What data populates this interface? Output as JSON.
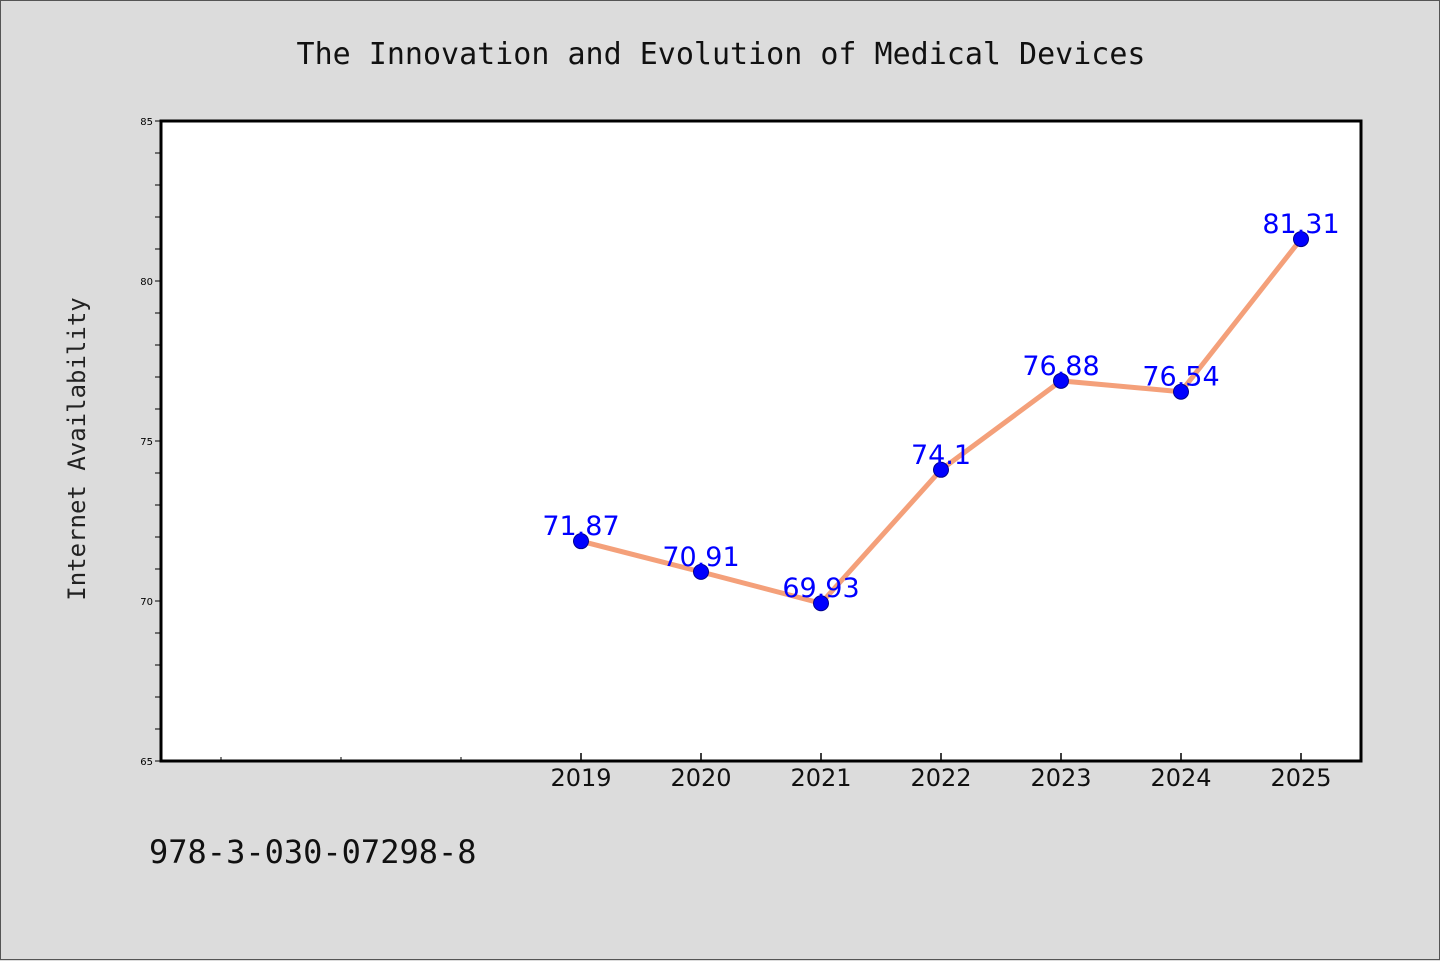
{
  "chart_data": {
    "type": "line",
    "title": "The Innovation and Evolution of Medical Devices",
    "xlabel": "",
    "ylabel": "Internet Availability",
    "categories": [
      "2019",
      "2020",
      "2021",
      "2022",
      "2023",
      "2024",
      "2025"
    ],
    "values": [
      71.87,
      70.91,
      69.93,
      74.1,
      76.88,
      76.54,
      81.31
    ],
    "data_labels": [
      "71.87",
      "70.91",
      "69.93",
      "74.1",
      "76.88",
      "76.54",
      "81.31"
    ],
    "ylim": [
      65,
      85
    ],
    "yticks": [
      "65",
      "70",
      "75",
      "80",
      "85"
    ],
    "grid": false,
    "legend": "none",
    "line_color": "#f4a07a",
    "marker_color": "#0000ff",
    "label_color": "#0000ff"
  },
  "footnote": "978-3-030-07298-8"
}
